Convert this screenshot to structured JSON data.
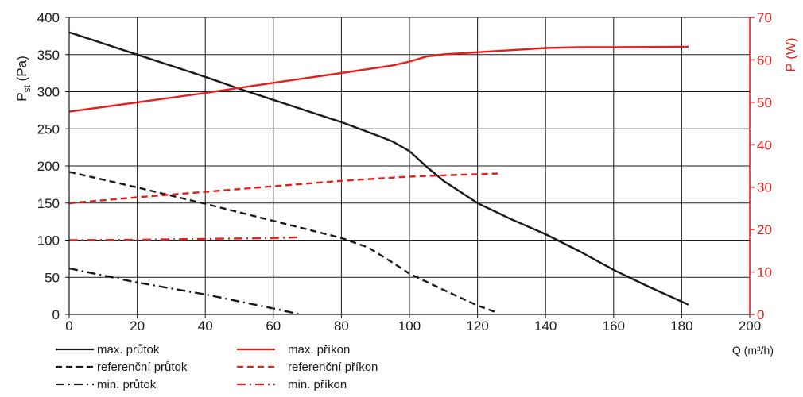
{
  "chart_data": {
    "type": "line",
    "xlabel": "Q (m³/h)",
    "ylabel_left": {
      "main": "P",
      "sub": "st",
      "unit": " (Pa)"
    },
    "ylabel_right": "P (W)",
    "xlim": [
      0,
      200
    ],
    "ylim_left": [
      0,
      400
    ],
    "ylim_right": [
      0,
      70
    ],
    "x_ticks": [
      0,
      20,
      40,
      60,
      80,
      100,
      120,
      140,
      160,
      180,
      200
    ],
    "y_left_ticks": [
      0,
      50,
      100,
      150,
      200,
      250,
      300,
      350,
      400
    ],
    "y_right_ticks": [
      0,
      10,
      20,
      30,
      40,
      50,
      60,
      70
    ],
    "grid": true,
    "colors": {
      "flow": "#1a1a1a",
      "power": "#e3201b"
    },
    "series": [
      {
        "name": "max. průtok",
        "axis": "left",
        "style": "solid",
        "color": "#1a1a1a",
        "points": [
          [
            0,
            380
          ],
          [
            20,
            350
          ],
          [
            40,
            320
          ],
          [
            50,
            304
          ],
          [
            60,
            289
          ],
          [
            80,
            259
          ],
          [
            90,
            242
          ],
          [
            95,
            233
          ],
          [
            100,
            220
          ],
          [
            105,
            199
          ],
          [
            110,
            180
          ],
          [
            120,
            150
          ],
          [
            130,
            128
          ],
          [
            140,
            108
          ],
          [
            150,
            85
          ],
          [
            160,
            60
          ],
          [
            170,
            38
          ],
          [
            182,
            13
          ]
        ]
      },
      {
        "name": "referenční průtok",
        "axis": "left",
        "style": "dashed",
        "color": "#1a1a1a",
        "points": [
          [
            0,
            192
          ],
          [
            20,
            171
          ],
          [
            40,
            149
          ],
          [
            60,
            126
          ],
          [
            80,
            103
          ],
          [
            88,
            90
          ],
          [
            95,
            70
          ],
          [
            100,
            55
          ],
          [
            110,
            33
          ],
          [
            120,
            12
          ],
          [
            126,
            2
          ]
        ]
      },
      {
        "name": "min. průtok",
        "axis": "left",
        "style": "dashdot",
        "color": "#1a1a1a",
        "points": [
          [
            0,
            62
          ],
          [
            20,
            43
          ],
          [
            40,
            27
          ],
          [
            60,
            8
          ],
          [
            68,
            0
          ]
        ]
      },
      {
        "name": "max. příkon",
        "axis": "right",
        "style": "solid",
        "color": "#e3201b",
        "points": [
          [
            0,
            47.8
          ],
          [
            20,
            50.0
          ],
          [
            40,
            52.2
          ],
          [
            60,
            54.6
          ],
          [
            80,
            56.9
          ],
          [
            95,
            58.7
          ],
          [
            100,
            59.6
          ],
          [
            105,
            60.8
          ],
          [
            110,
            61.3
          ],
          [
            120,
            61.8
          ],
          [
            140,
            62.8
          ],
          [
            150,
            63.0
          ],
          [
            160,
            63.0
          ],
          [
            182,
            63.1
          ]
        ]
      },
      {
        "name": "referenční příkon",
        "axis": "right",
        "style": "dashed",
        "color": "#e3201b",
        "points": [
          [
            0,
            26.2
          ],
          [
            20,
            27.6
          ],
          [
            40,
            28.9
          ],
          [
            60,
            30.2
          ],
          [
            80,
            31.5
          ],
          [
            100,
            32.5
          ],
          [
            110,
            32.8
          ],
          [
            126,
            33.2
          ]
        ]
      },
      {
        "name": "min. příkon",
        "axis": "right",
        "style": "dashdot",
        "color": "#e3201b",
        "points": [
          [
            0,
            17.5
          ],
          [
            20,
            17.6
          ],
          [
            40,
            17.8
          ],
          [
            60,
            18.0
          ],
          [
            68,
            18.2
          ]
        ]
      }
    ],
    "legend_position": "bottom-left"
  }
}
